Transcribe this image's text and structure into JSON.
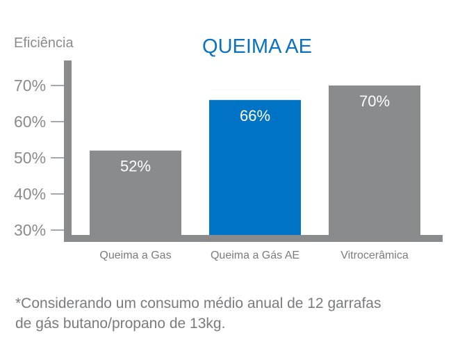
{
  "chart_data": {
    "type": "bar",
    "title": "QUEIMA AE",
    "ylabel": "Eficiência",
    "xlabel": "",
    "categories": [
      "Queima a Gas",
      "Queima a Gás AE",
      "Vitrocerâmica"
    ],
    "values": [
      52,
      66,
      70
    ],
    "value_labels": [
      "52%",
      "66%",
      "70%"
    ],
    "ylim": [
      28,
      78
    ],
    "yticks": [
      30,
      40,
      50,
      60,
      70
    ],
    "ytick_labels": [
      "30%",
      "40%",
      "50%",
      "60%",
      "70%"
    ],
    "grid": false,
    "colors": {
      "default_bar": "#8a8b8d",
      "highlight_bar": "#0073c4",
      "axis": "#8a8b8d"
    },
    "highlight_index": 1
  },
  "footnote": {
    "line1": "*Considerando um consumo médio anual de 12 garrafas",
    "line2": "de gás butano/propano de 13kg."
  }
}
